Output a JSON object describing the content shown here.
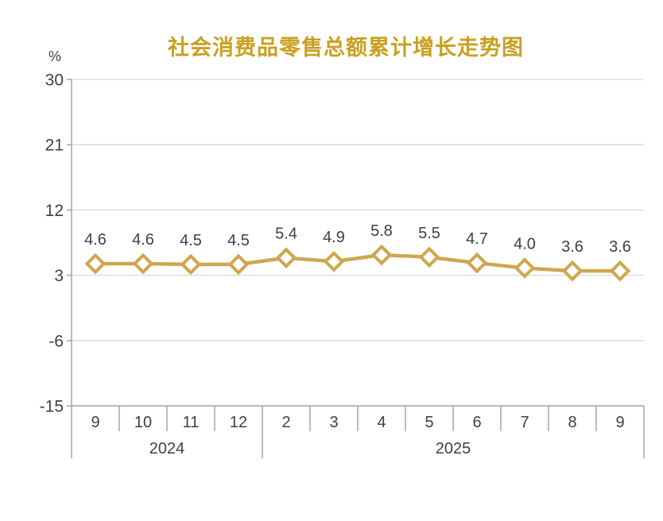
{
  "header": {
    "title": "社会消费品零售总额累计增长走势图"
  },
  "chart_data": {
    "type": "line",
    "title": "社会消费品零售总额累计增长走势图",
    "unit_label": "%",
    "categories": [
      "9",
      "10",
      "11",
      "12",
      "2",
      "3",
      "4",
      "5",
      "6",
      "7",
      "8",
      "9"
    ],
    "year_groups": [
      {
        "label": "2024",
        "count": 4
      },
      {
        "label": "2025",
        "count": 8
      }
    ],
    "values": [
      4.6,
      4.6,
      4.5,
      4.5,
      5.4,
      4.9,
      5.8,
      5.5,
      4.7,
      4.0,
      3.6,
      3.6
    ],
    "data_labels": [
      "4.6",
      "4.6",
      "4.5",
      "4.5",
      "5.4",
      "4.9",
      "5.8",
      "5.5",
      "4.7",
      "4.0",
      "3.6",
      "3.6"
    ],
    "y_ticks": [
      30,
      21,
      12,
      3,
      -6,
      -15
    ],
    "ylim": [
      -15,
      30
    ],
    "grid": true,
    "legend": "none",
    "marker": "diamond",
    "colors": {
      "title": "#C9A021",
      "line": "#CFA64F",
      "marker_fill": "#FFFFFF",
      "grid": "#D9D9D9",
      "axis": "#A6A6A6",
      "label": "#404040"
    }
  }
}
